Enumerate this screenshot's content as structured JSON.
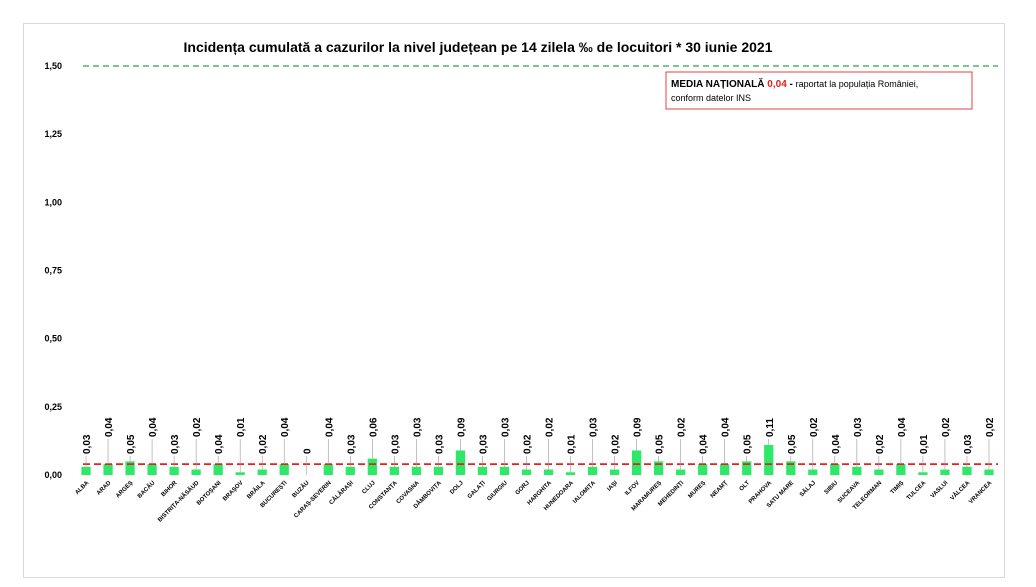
{
  "chart_data": {
    "type": "bar",
    "title": "Incidența cumulată a cazurilor la nivel județean pe 14 zilela ‰ de locuitori *  30 iunie 2021",
    "categories": [
      "ALBA",
      "ARAD",
      "ARGEȘ",
      "BACĂU",
      "BIHOR",
      "BISTRIȚA-NĂSĂUD",
      "BOTOȘANI",
      "BRAȘOV",
      "BRĂILA",
      "BUCUREȘTI",
      "BUZĂU",
      "CARAȘ-SEVERIN",
      "CĂLĂRAȘI",
      "CLUJ",
      "CONSTANȚA",
      "COVASNA",
      "DÂMBOVIȚA",
      "DOLJ",
      "GALAȚI",
      "GIURGIU",
      "GORJ",
      "HARGHITA",
      "HUNEDOARA",
      "IALOMIȚA",
      "IAȘI",
      "ILFOV",
      "MARAMUREȘ",
      "MEHEDINȚI",
      "MUREȘ",
      "NEAMȚ",
      "OLT",
      "PRAHOVA",
      "SATU MARE",
      "SĂLAJ",
      "SIBIU",
      "SUCEAVA",
      "TELEORMAN",
      "TIMIȘ",
      "TULCEA",
      "VASLUI",
      "VÂLCEA",
      "VRANCEA"
    ],
    "values": [
      0.03,
      0.04,
      0.05,
      0.04,
      0.03,
      0.02,
      0.04,
      0.01,
      0.02,
      0.04,
      0,
      0.04,
      0.03,
      0.06,
      0.03,
      0.03,
      0.03,
      0.09,
      0.03,
      0.03,
      0.02,
      0.02,
      0.01,
      0.03,
      0.02,
      0.09,
      0.05,
      0.02,
      0.04,
      0.04,
      0.05,
      0.11,
      0.05,
      0.02,
      0.04,
      0.03,
      0.02,
      0.04,
      0.01,
      0.02,
      0.03,
      0.02
    ],
    "value_labels": [
      "0,03",
      "0,04",
      "0,05",
      "0,04",
      "0,03",
      "0,02",
      "0,04",
      "0,01",
      "0,02",
      "0,04",
      "0",
      "0,04",
      "0,03",
      "0,06",
      "0,03",
      "0,03",
      "0,03",
      "0,09",
      "0,03",
      "0,03",
      "0,02",
      "0,02",
      "0,01",
      "0,03",
      "0,02",
      "0,09",
      "0,05",
      "0,02",
      "0,04",
      "0,04",
      "0,05",
      "0,11",
      "0,05",
      "0,02",
      "0,04",
      "0,03",
      "0,02",
      "0,04",
      "0,01",
      "0,02",
      "0,03",
      "0,02"
    ],
    "ylim": [
      0,
      1.5
    ],
    "yticks": [
      0,
      0.25,
      0.5,
      0.75,
      1.0,
      1.25,
      1.5
    ],
    "ytick_labels": [
      "0,00",
      "0,25",
      "0,50",
      "0,75",
      "1,00",
      "1,25",
      "1,50"
    ],
    "national_average": 0.04,
    "threshold_line": 1.5,
    "grid": false,
    "colors": {
      "bar": "#2ee86a",
      "average_line": "#e8201c",
      "threshold_line": "#2aa54a",
      "note_border": "#e84040",
      "note_value": "#e8201c"
    }
  },
  "note": {
    "bold_text": "MEDIA NAȚIONALĂ",
    "value_text": "0,04",
    "dash": "-",
    "rest_text": "raportat la populația României,",
    "line2": "conform datelor INS"
  }
}
